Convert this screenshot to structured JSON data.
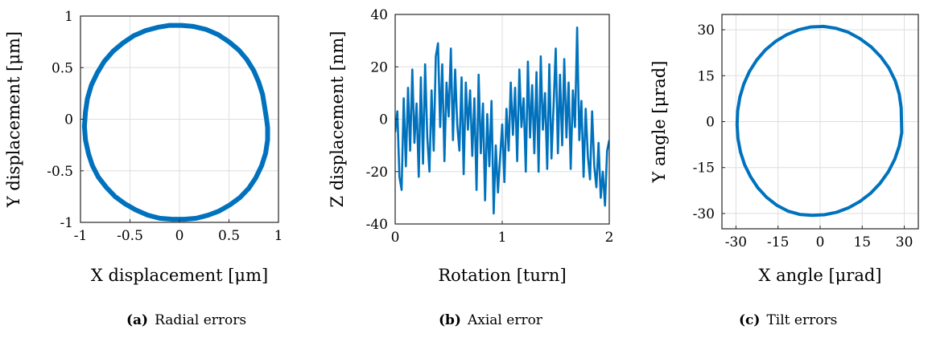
{
  "chart_data": [
    {
      "type": "line",
      "panel": "a",
      "caption_tag": "(a)",
      "caption": "Radial errors",
      "xlabel": "X displacement [μm]",
      "ylabel": "Y displacement [μm]",
      "xlim": [
        -1,
        1
      ],
      "ylim": [
        -1,
        1
      ],
      "xticks": [
        "-1",
        "-0.5",
        "0",
        "0.5",
        "1"
      ],
      "xtick_values": [
        -1,
        -0.5,
        0,
        0.5,
        1
      ],
      "yticks": [
        "-1",
        "-0.5",
        "0",
        "0.5",
        "1"
      ],
      "ytick_values": [
        -1,
        -0.5,
        0,
        0.5,
        1
      ],
      "grid": true,
      "color": "#0072BD",
      "series": [
        {
          "x": [
            0.88,
            0.86,
            0.84,
            0.8,
            0.75,
            0.68,
            0.6,
            0.5,
            0.39,
            0.27,
            0.14,
            0.02,
            -0.1,
            -0.22,
            -0.34,
            -0.46,
            -0.57,
            -0.67,
            -0.76,
            -0.83,
            -0.89,
            -0.93,
            -0.95,
            -0.96,
            -0.95,
            -0.92,
            -0.88,
            -0.82,
            -0.74,
            -0.65,
            -0.55,
            -0.44,
            -0.32,
            -0.2,
            -0.07,
            0.05,
            0.17,
            0.29,
            0.4,
            0.51,
            0.61,
            0.7,
            0.77,
            0.83,
            0.87,
            0.89,
            0.89,
            0.88
          ],
          "y": [
            0.0,
            0.12,
            0.24,
            0.36,
            0.47,
            0.58,
            0.67,
            0.75,
            0.82,
            0.87,
            0.9,
            0.91,
            0.91,
            0.89,
            0.86,
            0.81,
            0.74,
            0.66,
            0.56,
            0.45,
            0.33,
            0.2,
            0.07,
            -0.07,
            -0.2,
            -0.33,
            -0.45,
            -0.56,
            -0.66,
            -0.75,
            -0.82,
            -0.88,
            -0.93,
            -0.96,
            -0.97,
            -0.97,
            -0.96,
            -0.93,
            -0.89,
            -0.83,
            -0.76,
            -0.67,
            -0.57,
            -0.45,
            -0.33,
            -0.2,
            -0.08,
            0.0
          ]
        }
      ]
    },
    {
      "type": "line",
      "panel": "b",
      "caption_tag": "(b)",
      "caption": "Axial error",
      "xlabel": "Rotation [turn]",
      "ylabel": "Z displacement [nm]",
      "xlim": [
        0,
        2
      ],
      "ylim": [
        -40,
        40
      ],
      "xticks": [
        "0",
        "1",
        "2"
      ],
      "xtick_values": [
        0,
        1,
        2
      ],
      "yticks": [
        "-40",
        "-20",
        "0",
        "20",
        "40"
      ],
      "ytick_values": [
        -40,
        -20,
        0,
        20,
        40
      ],
      "grid": true,
      "color": "#0072BD",
      "series": [
        {
          "x": [
            0.0,
            0.02,
            0.04,
            0.06,
            0.08,
            0.1,
            0.12,
            0.14,
            0.16,
            0.18,
            0.2,
            0.22,
            0.24,
            0.26,
            0.28,
            0.3,
            0.32,
            0.34,
            0.36,
            0.38,
            0.4,
            0.42,
            0.44,
            0.46,
            0.48,
            0.5,
            0.52,
            0.54,
            0.56,
            0.58,
            0.6,
            0.62,
            0.64,
            0.66,
            0.68,
            0.7,
            0.72,
            0.74,
            0.76,
            0.78,
            0.8,
            0.82,
            0.84,
            0.86,
            0.88,
            0.9,
            0.92,
            0.94,
            0.96,
            0.98,
            1.0,
            1.02,
            1.04,
            1.06,
            1.08,
            1.1,
            1.12,
            1.14,
            1.16,
            1.18,
            1.2,
            1.22,
            1.24,
            1.26,
            1.28,
            1.3,
            1.32,
            1.34,
            1.36,
            1.38,
            1.4,
            1.42,
            1.44,
            1.46,
            1.48,
            1.5,
            1.52,
            1.54,
            1.56,
            1.58,
            1.6,
            1.62,
            1.64,
            1.66,
            1.68,
            1.7,
            1.72,
            1.74,
            1.76,
            1.78,
            1.8,
            1.82,
            1.84,
            1.86,
            1.88,
            1.9,
            1.92,
            1.94,
            1.96,
            1.98,
            2.0
          ],
          "y": [
            -5,
            3,
            -22,
            -27,
            8,
            -18,
            12,
            -12,
            19,
            -9,
            6,
            -22,
            16,
            -17,
            21,
            -7,
            -20,
            11,
            -12,
            24,
            29,
            -3,
            21,
            -16,
            14,
            1,
            27,
            -8,
            19,
            -2,
            -12,
            16,
            -21,
            14,
            -4,
            11,
            -14,
            8,
            -27,
            17,
            -13,
            6,
            -31,
            2,
            -18,
            7,
            -36,
            -10,
            -28,
            -15,
            -2,
            -24,
            4,
            -12,
            14,
            -6,
            12,
            -16,
            19,
            -3,
            8,
            -20,
            22,
            -7,
            13,
            -13,
            18,
            -20,
            24,
            -4,
            10,
            -19,
            21,
            -15,
            5,
            27,
            -13,
            17,
            -10,
            23,
            -7,
            14,
            -19,
            11,
            -3,
            35,
            -8,
            7,
            -22,
            4,
            -14,
            -23,
            3,
            -18,
            -26,
            -9,
            -30,
            -20,
            -33,
            -12,
            -8
          ]
        }
      ]
    },
    {
      "type": "line",
      "panel": "c",
      "caption_tag": "(c)",
      "caption": "Tilt errors",
      "xlabel": "X angle [μrad]",
      "ylabel": "Y angle [μrad]",
      "xlim": [
        -35,
        35
      ],
      "ylim": [
        -35,
        35
      ],
      "xticks": [
        "-30",
        "-15",
        "0",
        "15",
        "30"
      ],
      "xtick_values": [
        -30,
        -15,
        0,
        15,
        30
      ],
      "yticks": [
        "-30",
        "-15",
        "0",
        "15",
        "30"
      ],
      "ytick_values": [
        -30,
        -15,
        0,
        15,
        30
      ],
      "grid": true,
      "color": "#0072BD",
      "series": [
        {
          "x": [
            29.0,
            28.9,
            28.2,
            26.8,
            24.6,
            21.7,
            18.2,
            14.2,
            10.0,
            5.6,
            1.2,
            -3.3,
            -7.7,
            -11.9,
            -15.9,
            -19.5,
            -22.6,
            -25.2,
            -27.2,
            -28.6,
            -29.4,
            -29.6,
            -29.3,
            -28.4,
            -26.9,
            -24.8,
            -22.2,
            -19.1,
            -15.5,
            -11.5,
            -7.3,
            -2.9,
            1.5,
            5.9,
            10.2,
            14.3,
            18.1,
            21.4,
            24.3,
            26.6,
            28.2,
            29.1,
            29.0
          ],
          "y": [
            0.0,
            4.5,
            9.0,
            13.3,
            17.4,
            21.1,
            24.4,
            27.1,
            29.2,
            30.5,
            31.1,
            30.9,
            30.0,
            28.4,
            26.2,
            23.4,
            20.1,
            16.4,
            12.3,
            8.0,
            3.5,
            -1.0,
            -5.5,
            -9.9,
            -14.1,
            -18.0,
            -21.6,
            -24.7,
            -27.3,
            -29.2,
            -30.3,
            -30.6,
            -30.4,
            -29.6,
            -28.1,
            -26.0,
            -23.3,
            -20.1,
            -16.4,
            -12.3,
            -8.0,
            -3.6,
            0.0
          ]
        }
      ]
    }
  ]
}
